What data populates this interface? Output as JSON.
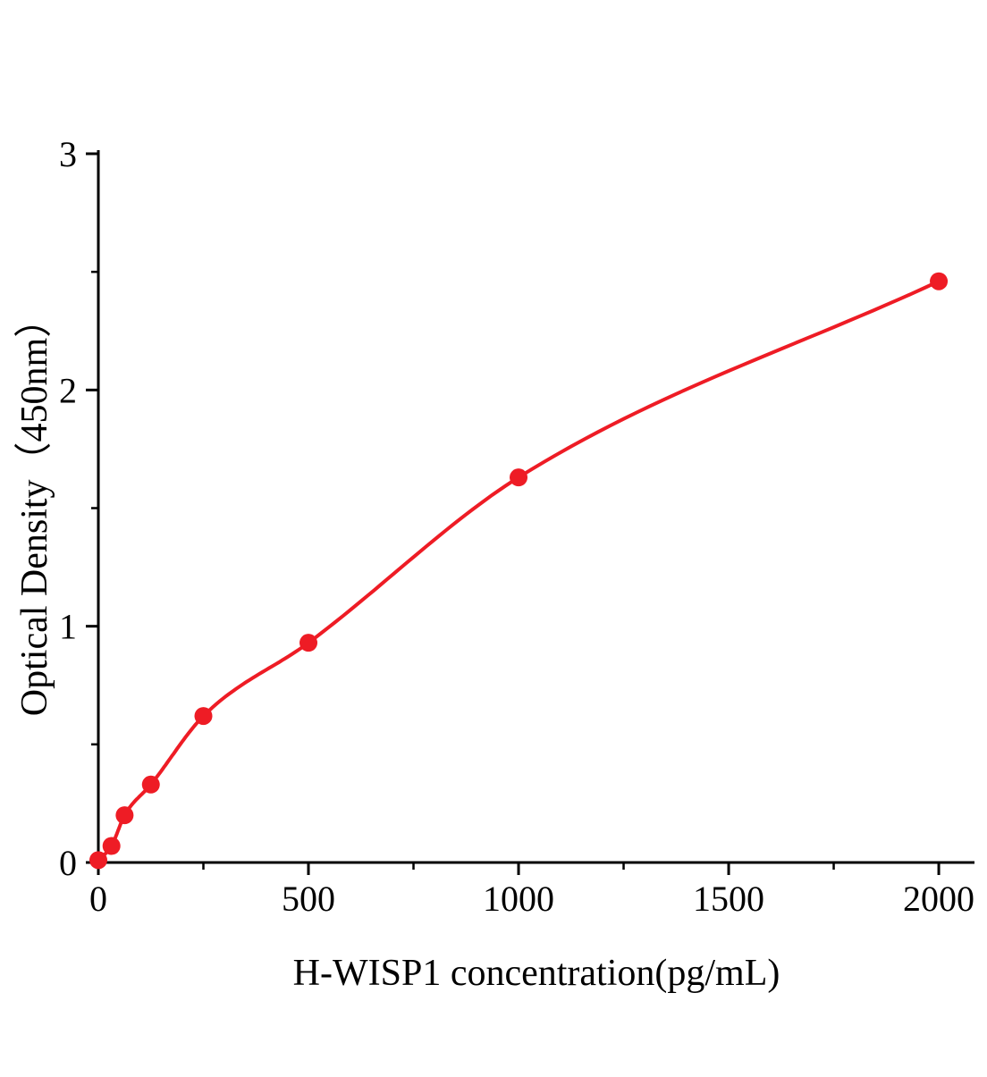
{
  "figure": {
    "background": "#ffffff"
  },
  "chart_data": {
    "type": "scatter",
    "title": "",
    "xlabel": "H-WISP1 concentration(pg/mL)",
    "ylabel": "Optical Density（450nm）",
    "x": [
      0,
      31.25,
      62.5,
      125,
      250,
      500,
      1000,
      2000
    ],
    "y": [
      0.01,
      0.07,
      0.2,
      0.33,
      0.62,
      0.93,
      1.63,
      2.46
    ],
    "curve": "smooth monotone fit through all points",
    "x_ticks": [
      0,
      500,
      1000,
      1500,
      2000
    ],
    "x_tick_labels": [
      "0",
      "500",
      "1000",
      "1500",
      "2000"
    ],
    "x_minor_ticks": [
      250,
      750,
      1250,
      1750
    ],
    "y_ticks": [
      0,
      1,
      2,
      3
    ],
    "y_tick_labels": [
      "0",
      "1",
      "2",
      "3"
    ],
    "y_minor_ticks": [
      0.5,
      1.5,
      2.5
    ],
    "xlim": [
      0,
      2085
    ],
    "ylim": [
      0,
      3
    ],
    "grid": false,
    "legend": null,
    "marker_color": "#ee1c25",
    "line_color": "#ee1c25",
    "axis_color": "#000000"
  }
}
